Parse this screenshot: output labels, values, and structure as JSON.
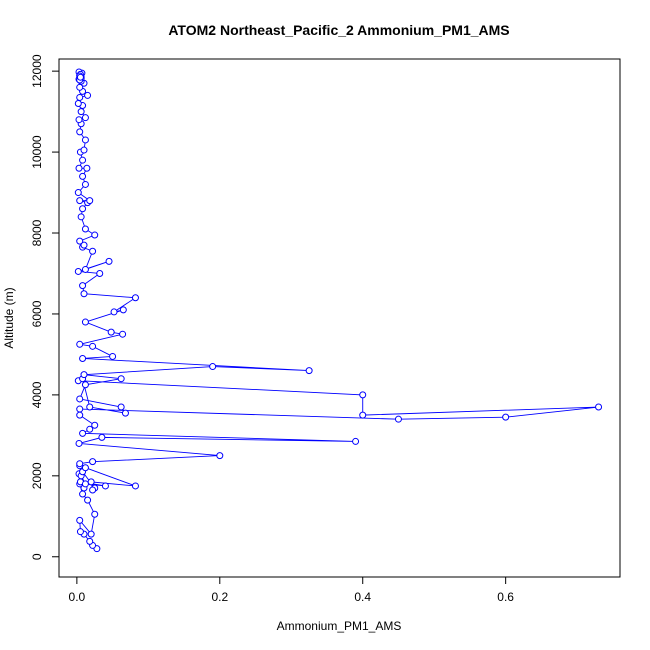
{
  "chart_data": {
    "type": "line",
    "title": "ATOM2 Northeast_Pacific_2 Ammonium_PM1_AMS",
    "xlabel": "Ammonium_PM1_AMS",
    "ylabel": "Altitude (m)",
    "xlim": [
      -0.025,
      0.76
    ],
    "ylim": [
      -500,
      12300
    ],
    "x_ticks": [
      0.0,
      0.2,
      0.4,
      0.6
    ],
    "x_tick_labels": [
      "0.0",
      "0.2",
      "0.4",
      "0.6"
    ],
    "y_ticks": [
      0,
      2000,
      4000,
      6000,
      8000,
      10000,
      12000
    ],
    "y_tick_labels": [
      "0",
      "2000",
      "4000",
      "6000",
      "8000",
      "10000",
      "12000"
    ],
    "series_color": "#0000ff",
    "marker": "open-circle",
    "grid": false,
    "series": [
      {
        "x": [
          0.028,
          0.022,
          0.018,
          0.01,
          0.005,
          0.004,
          0.02,
          0.025,
          0.015,
          0.008,
          0.004,
          0.003,
          0.01,
          0.005,
          0.04,
          0.012,
          0.006,
          0.004,
          0.008,
          0.025,
          0.022,
          0.02,
          0.082,
          0.012,
          0.004,
          0.022,
          0.2,
          0.003,
          0.035,
          0.39,
          0.008,
          0.018,
          0.025,
          0.004,
          0.004,
          0.45,
          0.6,
          0.73,
          0.4,
          0.4,
          0.002,
          0.008,
          0.018,
          0.068,
          0.062,
          0.004,
          0.012,
          0.062,
          0.01,
          0.19,
          0.325,
          0.008,
          0.05,
          0.022,
          0.004,
          0.064,
          0.048,
          0.012,
          0.065,
          0.052,
          0.082,
          0.01,
          0.008,
          0.032,
          0.002,
          0.045,
          0.012,
          0.022,
          0.008,
          0.01,
          0.004,
          0.025,
          0.012,
          0.006,
          0.008,
          0.015,
          0.004,
          0.018,
          0.002,
          0.012,
          0.008,
          0.014,
          0.003,
          0.008,
          0.005,
          0.01,
          0.012,
          0.004,
          0.006,
          0.003,
          0.012,
          0.006,
          0.008,
          0.002,
          0.004,
          0.015,
          0.008,
          0.004,
          0.01,
          0.006,
          0.003,
          0.006,
          0.004,
          0.007,
          0.003,
          0.005,
          0.004,
          0.006,
          0.004,
          0.005
        ],
        "y": [
          200,
          280,
          380,
          560,
          620,
          900,
          560,
          1050,
          1400,
          1550,
          1800,
          2050,
          1700,
          1850,
          1750,
          1800,
          2000,
          2250,
          2100,
          1700,
          1650,
          1850,
          1750,
          2200,
          2300,
          2350,
          2500,
          2800,
          2950,
          2850,
          3050,
          3150,
          3250,
          3500,
          3650,
          3400,
          3450,
          3700,
          3500,
          4000,
          4350,
          4400,
          3700,
          3550,
          3700,
          3900,
          4250,
          4400,
          4500,
          4700,
          4600,
          4900,
          4950,
          5200,
          5250,
          5500,
          5550,
          5800,
          6100,
          6050,
          6400,
          6500,
          6700,
          7000,
          7050,
          7300,
          7100,
          7550,
          7650,
          7700,
          7800,
          7950,
          8100,
          8400,
          8600,
          8750,
          8800,
          8800,
          9000,
          9200,
          9400,
          9600,
          9600,
          9800,
          10000,
          10050,
          10300,
          10500,
          10700,
          10800,
          10850,
          11000,
          11150,
          11200,
          11350,
          11400,
          11500,
          11600,
          11700,
          11750,
          11800,
          11850,
          11900,
          11950,
          11980,
          11920,
          11880,
          11820,
          11780,
          11850
        ]
      }
    ]
  }
}
